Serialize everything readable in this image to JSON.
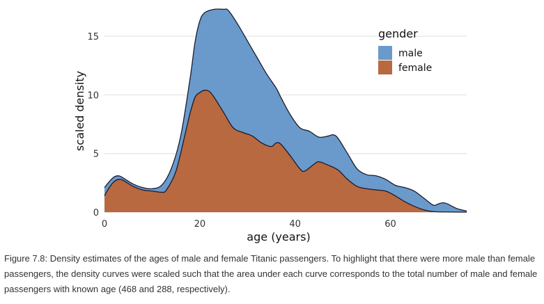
{
  "chart_data": {
    "type": "area",
    "xlabel": "age (years)",
    "ylabel": "scaled density",
    "xlim": [
      0,
      76
    ],
    "ylim": [
      0,
      17.5
    ],
    "x_ticks": [
      0,
      20,
      40,
      60
    ],
    "y_ticks": [
      0,
      5,
      10,
      15
    ],
    "grid": "horizontal",
    "legend": {
      "title": "gender",
      "position": "top-right"
    },
    "series": [
      {
        "name": "male",
        "color": "#6a9acb",
        "points": [
          [
            0,
            2.1
          ],
          [
            1,
            2.6
          ],
          [
            2,
            3.0
          ],
          [
            3,
            3.1
          ],
          [
            4,
            2.9
          ],
          [
            6,
            2.4
          ],
          [
            8,
            2.1
          ],
          [
            10,
            2.0
          ],
          [
            12,
            2.3
          ],
          [
            14,
            3.7
          ],
          [
            16,
            6.5
          ],
          [
            18,
            11.5
          ],
          [
            19,
            14.5
          ],
          [
            20,
            16.3
          ],
          [
            21,
            17.0
          ],
          [
            23,
            17.3
          ],
          [
            25,
            17.3
          ],
          [
            26,
            17.2
          ],
          [
            28,
            16.0
          ],
          [
            30,
            14.6
          ],
          [
            32,
            13.2
          ],
          [
            34,
            11.8
          ],
          [
            36,
            10.6
          ],
          [
            37,
            9.8
          ],
          [
            39,
            8.3
          ],
          [
            41,
            7.2
          ],
          [
            43,
            6.9
          ],
          [
            45,
            6.4
          ],
          [
            47,
            6.5
          ],
          [
            48,
            6.6
          ],
          [
            49,
            6.3
          ],
          [
            51,
            5.0
          ],
          [
            53,
            3.7
          ],
          [
            55,
            3.2
          ],
          [
            57,
            3.1
          ],
          [
            59,
            2.8
          ],
          [
            61,
            2.3
          ],
          [
            63,
            2.1
          ],
          [
            65,
            1.8
          ],
          [
            67,
            1.2
          ],
          [
            69,
            0.6
          ],
          [
            70,
            0.7
          ],
          [
            71,
            0.8
          ],
          [
            72,
            0.7
          ],
          [
            74,
            0.3
          ],
          [
            76,
            0.1
          ]
        ]
      },
      {
        "name": "female",
        "color": "#b8693f",
        "points": [
          [
            0,
            1.4
          ],
          [
            1,
            2.1
          ],
          [
            2,
            2.6
          ],
          [
            3,
            2.8
          ],
          [
            4,
            2.7
          ],
          [
            6,
            2.2
          ],
          [
            8,
            1.9
          ],
          [
            10,
            1.8
          ],
          [
            12,
            1.7
          ],
          [
            13,
            1.9
          ],
          [
            15,
            3.5
          ],
          [
            17,
            6.8
          ],
          [
            18,
            8.5
          ],
          [
            19,
            9.8
          ],
          [
            20,
            10.2
          ],
          [
            21,
            10.4
          ],
          [
            22,
            10.3
          ],
          [
            23,
            9.8
          ],
          [
            25,
            8.5
          ],
          [
            27,
            7.2
          ],
          [
            29,
            6.8
          ],
          [
            31,
            6.5
          ],
          [
            33,
            5.9
          ],
          [
            35,
            5.6
          ],
          [
            36,
            5.9
          ],
          [
            37,
            5.8
          ],
          [
            39,
            4.8
          ],
          [
            41,
            3.7
          ],
          [
            42,
            3.5
          ],
          [
            44,
            4.1
          ],
          [
            45,
            4.3
          ],
          [
            47,
            4.0
          ],
          [
            49,
            3.6
          ],
          [
            51,
            2.8
          ],
          [
            53,
            2.2
          ],
          [
            55,
            2.0
          ],
          [
            57,
            1.9
          ],
          [
            59,
            1.8
          ],
          [
            61,
            1.4
          ],
          [
            63,
            0.9
          ],
          [
            65,
            0.5
          ],
          [
            67,
            0.2
          ],
          [
            69,
            0.05
          ],
          [
            71,
            0.02
          ],
          [
            76,
            0.0
          ]
        ]
      }
    ]
  },
  "caption": "Figure 7.8: Density estimates of the ages of male and female Titanic passengers. To highlight that there were more male than female passengers, the density curves were scaled such that the area under each curve corresponds to the total number of male and female passengers with known age (468 and 288, respectively)."
}
